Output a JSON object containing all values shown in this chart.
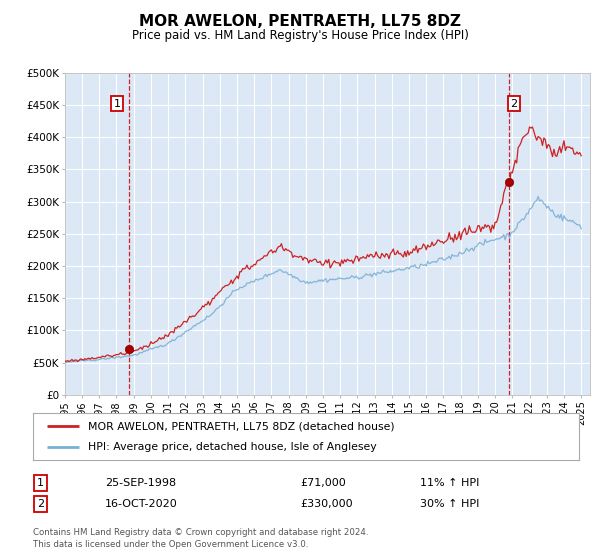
{
  "title": "MOR AWELON, PENTRAETH, LL75 8DZ",
  "subtitle": "Price paid vs. HM Land Registry's House Price Index (HPI)",
  "ylim": [
    0,
    500000
  ],
  "yticks": [
    0,
    50000,
    100000,
    150000,
    200000,
    250000,
    300000,
    350000,
    400000,
    450000,
    500000
  ],
  "ytick_labels": [
    "£0",
    "£50K",
    "£100K",
    "£150K",
    "£200K",
    "£250K",
    "£300K",
    "£350K",
    "£400K",
    "£450K",
    "£500K"
  ],
  "background_color": "#dce8f5",
  "grid_color": "#ffffff",
  "sale1_date": 1998.73,
  "sale1_price": 71000,
  "sale2_date": 2020.79,
  "sale2_price": 330000,
  "vline_color": "#cc0000",
  "hpi_line_color": "#7bafd4",
  "price_line_color": "#cc2222",
  "legend_text_1": "MOR AWELON, PENTRAETH, LL75 8DZ (detached house)",
  "legend_text_2": "HPI: Average price, detached house, Isle of Anglesey",
  "annotation1_label": "1",
  "annotation2_label": "2",
  "table_row1": [
    "1",
    "25-SEP-1998",
    "£71,000",
    "11% ↑ HPI"
  ],
  "table_row2": [
    "2",
    "16-OCT-2020",
    "£330,000",
    "30% ↑ HPI"
  ],
  "footer": "Contains HM Land Registry data © Crown copyright and database right 2024.\nThis data is licensed under the Open Government Licence v3.0.",
  "xlim_start": 1995.0,
  "xlim_end": 2025.5
}
